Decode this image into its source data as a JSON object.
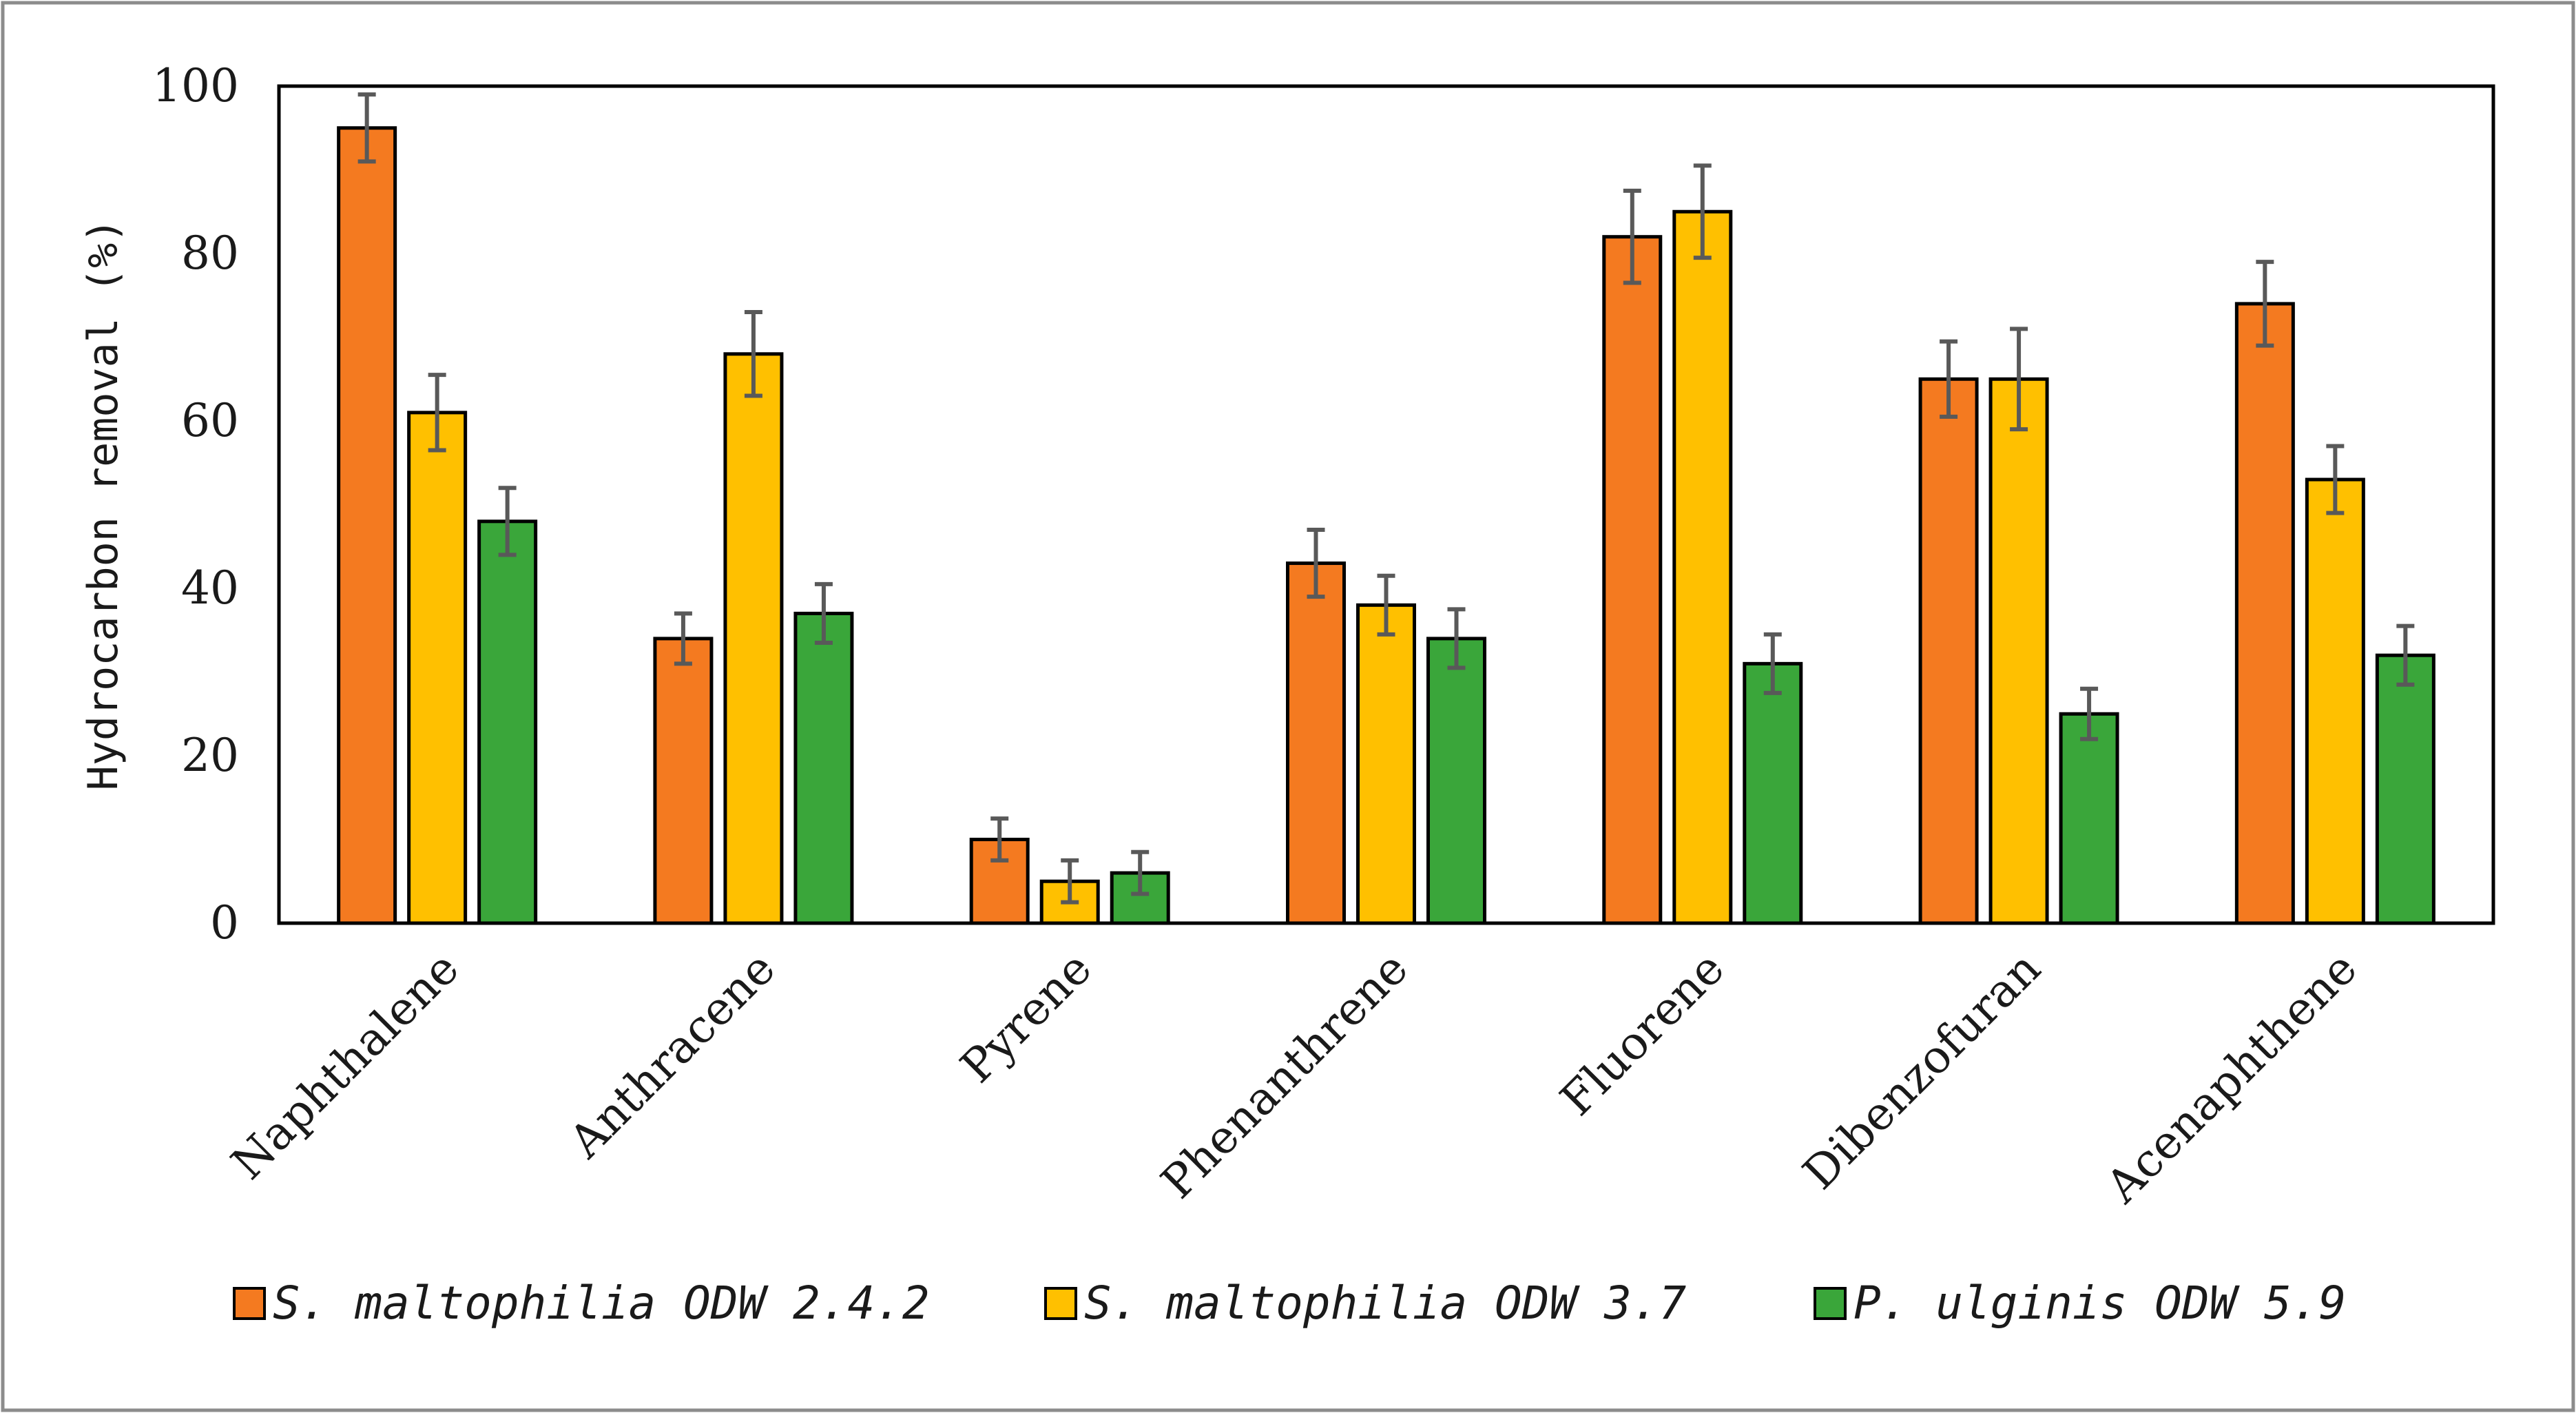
{
  "chart_data": {
    "type": "bar",
    "title": "",
    "xlabel": "",
    "ylabel": "Hydrocarbon removal (%)",
    "ylim": [
      0,
      100
    ],
    "yticks": [
      0,
      20,
      40,
      60,
      80,
      100
    ],
    "grid": false,
    "legend_position": "bottom",
    "categories": [
      "Naphthalene",
      "Anthracene",
      "Pyrene",
      "Phenanthrene",
      "Fluorene",
      "Dibenzofuran",
      "Acenaphthene"
    ],
    "series": [
      {
        "name": "S. maltophilia ODW 2.4.2",
        "color": "#f47a20",
        "values": [
          95,
          34,
          10,
          43,
          82,
          65,
          74
        ],
        "errors": [
          4,
          3,
          2.5,
          4,
          5.5,
          4.5,
          5
        ]
      },
      {
        "name": "S. maltophilia ODW 3.7",
        "color": "#ffc000",
        "values": [
          61,
          68,
          5,
          38,
          85,
          65,
          53
        ],
        "errors": [
          4.5,
          5,
          2.5,
          3.5,
          5.5,
          6,
          4
        ]
      },
      {
        "name": "P. ulginis ODW 5.9",
        "color": "#3aa63a",
        "values": [
          48,
          37,
          6,
          34,
          31,
          25,
          32
        ],
        "errors": [
          4,
          3.5,
          2.5,
          3.5,
          3.5,
          3,
          3.5
        ]
      }
    ]
  }
}
